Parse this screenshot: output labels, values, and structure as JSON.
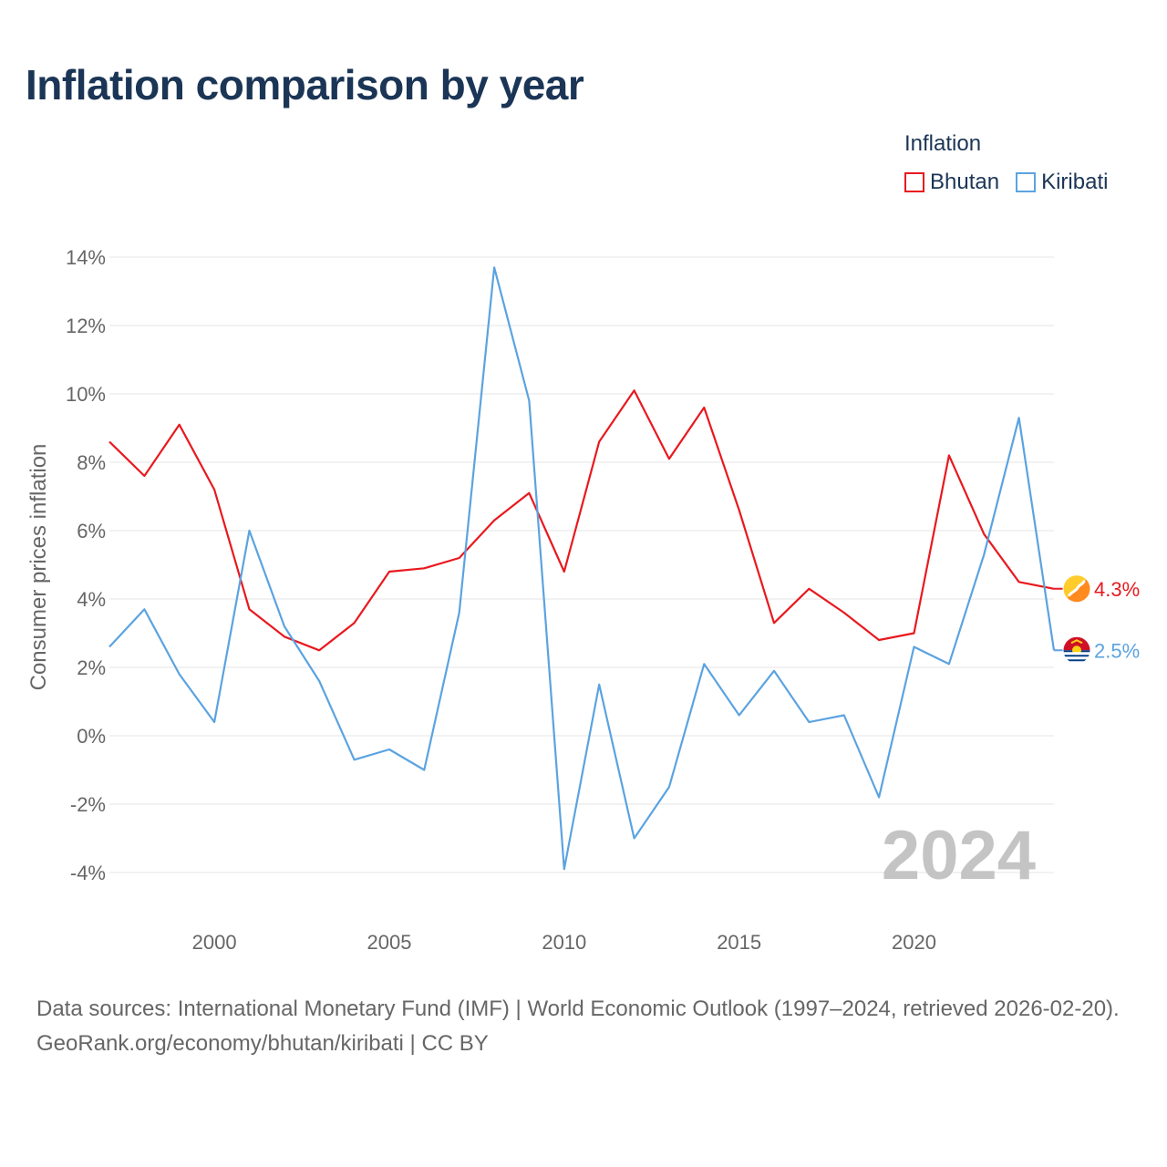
{
  "title": "Inflation comparison by year",
  "legend": {
    "title": "Inflation",
    "items": [
      {
        "label": "Bhutan",
        "color": "#e8191f"
      },
      {
        "label": "Kiribati",
        "color": "#5ba3e0"
      }
    ]
  },
  "chart_data": {
    "type": "line",
    "title": "Inflation comparison by year",
    "xlabel": "",
    "ylabel": "Consumer prices inflation",
    "ylim": [
      -4,
      14
    ],
    "xlim": [
      1997,
      2024
    ],
    "x_ticks": [
      2000,
      2005,
      2010,
      2015,
      2020
    ],
    "y_ticks": [
      -4,
      -2,
      0,
      2,
      4,
      6,
      8,
      10,
      12,
      14
    ],
    "y_tick_labels": [
      "-4%",
      "-2%",
      "0%",
      "2%",
      "4%",
      "6%",
      "8%",
      "10%",
      "12%",
      "14%"
    ],
    "grid": true,
    "year_watermark": "2024",
    "x": [
      1997,
      1998,
      1999,
      2000,
      2001,
      2002,
      2003,
      2004,
      2005,
      2006,
      2007,
      2008,
      2009,
      2010,
      2011,
      2012,
      2013,
      2014,
      2015,
      2016,
      2017,
      2018,
      2019,
      2020,
      2021,
      2022,
      2023,
      2024
    ],
    "series": [
      {
        "name": "Bhutan",
        "color": "#e8191f",
        "end_label": "4.3%",
        "flag_icon": "bhutan-flag-icon",
        "values": [
          8.6,
          7.6,
          9.1,
          7.2,
          3.7,
          2.9,
          2.5,
          3.3,
          4.8,
          4.9,
          5.2,
          6.3,
          7.1,
          4.8,
          8.6,
          10.1,
          8.1,
          9.6,
          6.6,
          3.3,
          4.3,
          3.6,
          2.8,
          3.0,
          8.2,
          5.9,
          4.5,
          4.3
        ]
      },
      {
        "name": "Kiribati",
        "color": "#5ba3e0",
        "end_label": "2.5%",
        "flag_icon": "kiribati-flag-icon",
        "values": [
          2.6,
          3.7,
          1.8,
          0.4,
          6.0,
          3.2,
          1.6,
          -0.7,
          -0.4,
          -1.0,
          3.6,
          13.7,
          9.8,
          -3.9,
          1.5,
          -3.0,
          -1.5,
          2.1,
          0.6,
          1.9,
          0.4,
          0.6,
          -1.8,
          2.6,
          2.1,
          5.3,
          9.3,
          2.5
        ]
      }
    ]
  },
  "footer": {
    "sources": "Data sources: International Monetary Fund (IMF) | World Economic Outlook (1997–2024, retrieved 2026-02-20).",
    "credit": "GeoRank.org/economy/bhutan/kiribati | CC BY"
  }
}
